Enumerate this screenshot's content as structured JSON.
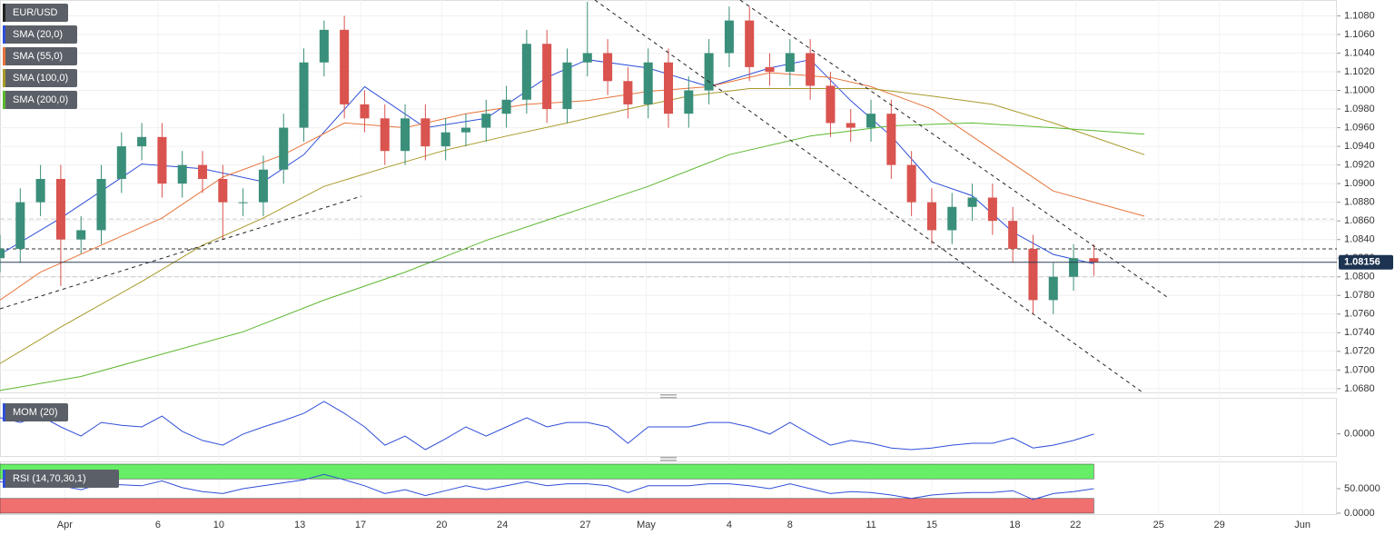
{
  "chart_data": [
    {
      "type": "candlestick",
      "series": [
        {
          "name": "EUR/USD",
          "up_color": "#3a8f7a",
          "down_color": "#d9534f"
        }
      ],
      "x": [
        0,
        1,
        2,
        3,
        4,
        5,
        6,
        7,
        8,
        9,
        10,
        11,
        12,
        13,
        14,
        15,
        16,
        17,
        18,
        19,
        20,
        21,
        22,
        23,
        24,
        25,
        26,
        27,
        28,
        29,
        30,
        31,
        32,
        33,
        34,
        35,
        36,
        37,
        38,
        39,
        40,
        41,
        42,
        43,
        44,
        45,
        46,
        47,
        48,
        49,
        50,
        51,
        52,
        53,
        54
      ],
      "open": [
        1.082,
        1.083,
        1.088,
        1.0905,
        1.084,
        1.085,
        1.0905,
        1.094,
        1.095,
        1.09,
        1.092,
        1.0905,
        1.088,
        1.088,
        1.0915,
        1.096,
        1.103,
        1.1065,
        1.0985,
        1.097,
        1.0935,
        1.097,
        1.094,
        1.0955,
        1.096,
        1.0975,
        1.099,
        1.105,
        1.098,
        1.103,
        1.104,
        1.101,
        1.0985,
        1.103,
        1.0975,
        1.1,
        1.104,
        1.1075,
        1.1025,
        1.102,
        1.104,
        1.1005,
        1.0965,
        1.096,
        1.0975,
        1.092,
        1.088,
        1.085,
        1.0875,
        1.0885,
        1.086,
        1.083,
        1.0775,
        1.08,
        1.082
      ],
      "high": [
        1.0845,
        1.0895,
        1.092,
        1.092,
        1.0865,
        1.092,
        1.0955,
        1.0965,
        1.0965,
        1.0935,
        1.0935,
        1.092,
        1.0895,
        1.093,
        1.0975,
        1.1045,
        1.1075,
        1.108,
        1.1,
        1.0985,
        1.0985,
        1.0985,
        1.097,
        1.0975,
        1.099,
        1.1005,
        1.1065,
        1.1065,
        1.1045,
        1.1095,
        1.1055,
        1.1025,
        1.1045,
        1.1045,
        1.1015,
        1.1055,
        1.109,
        1.109,
        1.104,
        1.1055,
        1.1055,
        1.102,
        1.098,
        1.099,
        1.099,
        1.0935,
        1.0895,
        1.089,
        1.09,
        1.09,
        1.0875,
        1.0845,
        1.0815,
        1.0835,
        1.0835
      ],
      "low": [
        1.0805,
        1.0815,
        1.0865,
        1.079,
        1.0825,
        1.0835,
        1.089,
        1.0925,
        1.0885,
        1.0885,
        1.089,
        1.084,
        1.0865,
        1.0865,
        1.09,
        1.0945,
        1.1015,
        1.097,
        1.0955,
        1.092,
        1.092,
        1.0925,
        1.0925,
        1.094,
        1.0945,
        1.096,
        1.0975,
        1.0965,
        1.0965,
        1.1015,
        1.0995,
        1.097,
        1.097,
        1.096,
        1.096,
        1.0985,
        1.1025,
        1.101,
        1.1005,
        1.1005,
        1.099,
        1.095,
        1.0945,
        1.0945,
        1.0905,
        1.0865,
        1.0835,
        1.0835,
        1.086,
        1.0845,
        1.0815,
        1.076,
        1.076,
        1.0785,
        1.0801
      ],
      "close": [
        1.083,
        1.088,
        1.0905,
        1.084,
        1.085,
        1.0905,
        1.094,
        1.095,
        1.09,
        1.092,
        1.0905,
        1.088,
        1.088,
        1.0915,
        1.096,
        1.103,
        1.1065,
        1.0985,
        1.097,
        1.0935,
        1.097,
        1.094,
        1.0955,
        1.096,
        1.0975,
        1.099,
        1.105,
        1.098,
        1.103,
        1.104,
        1.101,
        1.0985,
        1.103,
        1.0975,
        1.1,
        1.104,
        1.1075,
        1.1025,
        1.102,
        1.104,
        1.1005,
        1.0965,
        1.096,
        1.0975,
        1.092,
        1.088,
        1.085,
        1.0875,
        1.0885,
        1.086,
        1.083,
        1.0775,
        1.08,
        1.082,
        1.0816
      ],
      "lines": [
        {
          "name": "SMA (20,0)",
          "color": "#2f4fd8",
          "x": [
            0,
            3,
            7,
            10,
            13,
            15,
            18,
            21,
            24,
            27,
            29,
            32,
            35,
            38,
            40,
            42,
            44,
            46,
            48,
            50,
            52,
            54
          ],
          "values": [
            1.0824,
            1.0863,
            1.0921,
            1.0916,
            1.0902,
            1.0931,
            1.1004,
            1.096,
            1.097,
            1.1014,
            1.1033,
            1.1024,
            1.1004,
            1.1024,
            1.1033,
            1.0989,
            1.0951,
            1.0902,
            1.0887,
            1.0848,
            1.0824,
            1.0814
          ]
        },
        {
          "name": "SMA (55,0)",
          "color": "#e8743b",
          "x": [
            0,
            2,
            5,
            8,
            11,
            14,
            17,
            20,
            23,
            26,
            29,
            32,
            35,
            38,
            41,
            43,
            46,
            49,
            52,
            56.5
          ],
          "values": [
            1.0775,
            1.0805,
            1.0834,
            1.0863,
            1.0907,
            1.0931,
            1.0965,
            1.096,
            1.0975,
            1.0985,
            1.0989,
            1.0999,
            1.1004,
            1.1019,
            1.1014,
            1.1004,
            1.098,
            1.0936,
            1.0892,
            1.0865
          ]
        },
        {
          "name": "SMA (100,0)",
          "color": "#a89a2a",
          "x": [
            0,
            3,
            7,
            10,
            13,
            16,
            19,
            22,
            25,
            28,
            31,
            34,
            37,
            40,
            43,
            46,
            49,
            52,
            54.5,
            56.5
          ],
          "values": [
            1.0707,
            1.0746,
            1.0795,
            1.0834,
            1.0863,
            1.0897,
            1.0917,
            1.0936,
            1.0951,
            1.0965,
            1.098,
            1.0994,
            1.1002,
            1.1002,
            1.1002,
            1.0994,
            1.0985,
            1.0965,
            1.0946,
            1.0931
          ]
        },
        {
          "name": "SMA (200,0)",
          "color": "#5cb82e",
          "x": [
            0,
            4,
            8,
            12,
            16,
            20,
            24,
            28,
            32,
            36,
            40,
            44,
            48,
            52,
            56.5
          ],
          "values": [
            1.0678,
            1.0693,
            1.0717,
            1.0741,
            1.0775,
            1.0805,
            1.0839,
            1.0868,
            1.0897,
            1.0931,
            1.0951,
            1.0962,
            1.0965,
            1.096,
            1.0953
          ]
        }
      ],
      "hlines": [
        {
          "value": 1.083,
          "style": "dashed"
        },
        {
          "value": 1.08,
          "style": "dotted"
        },
        {
          "value": 1.0862,
          "style": "dotted"
        }
      ],
      "last_price": {
        "value": 1.08156,
        "label": "1.08156"
      },
      "xlim": [
        0,
        66
      ],
      "xticks": [
        {
          "value": 3.2,
          "label": "Apr"
        },
        {
          "value": 7.8,
          "label": "6"
        },
        {
          "value": 10.8,
          "label": "10"
        },
        {
          "value": 14.8,
          "label": "13"
        },
        {
          "value": 17.8,
          "label": "17"
        },
        {
          "value": 21.8,
          "label": "20"
        },
        {
          "value": 24.8,
          "label": "24"
        },
        {
          "value": 28.9,
          "label": "27"
        },
        {
          "value": 31.9,
          "label": "May"
        },
        {
          "value": 36,
          "label": "4"
        },
        {
          "value": 39,
          "label": "8"
        },
        {
          "value": 43,
          "label": "11"
        },
        {
          "value": 46,
          "label": "15"
        },
        {
          "value": 50.1,
          "label": "18"
        },
        {
          "value": 53.1,
          "label": "22"
        },
        {
          "value": 57.2,
          "label": "25"
        },
        {
          "value": 60.2,
          "label": "29"
        },
        {
          "value": 64.3,
          "label": "Jun"
        }
      ],
      "ylim": [
        1.0675,
        1.1097
      ],
      "yticks": [
        {
          "value": 1.068,
          "label": "1.0680"
        },
        {
          "value": 1.07,
          "label": "1.0700"
        },
        {
          "value": 1.072,
          "label": "1.0720"
        },
        {
          "value": 1.074,
          "label": "1.0740"
        },
        {
          "value": 1.076,
          "label": "1.0760"
        },
        {
          "value": 1.078,
          "label": "1.0780"
        },
        {
          "value": 1.08,
          "label": "1.0800"
        },
        {
          "value": 1.082,
          "label": "1.0820"
        },
        {
          "value": 1.084,
          "label": "1.0840"
        },
        {
          "value": 1.086,
          "label": "1.0860"
        },
        {
          "value": 1.088,
          "label": "1.0880"
        },
        {
          "value": 1.09,
          "label": "1.0900"
        },
        {
          "value": 1.092,
          "label": "1.0920"
        },
        {
          "value": 1.094,
          "label": "1.0940"
        },
        {
          "value": 1.096,
          "label": "1.0960"
        },
        {
          "value": 1.098,
          "label": "1.0980"
        },
        {
          "value": 1.1,
          "label": "1.1000"
        },
        {
          "value": 1.102,
          "label": "1.1020"
        },
        {
          "value": 1.104,
          "label": "1.1040"
        },
        {
          "value": 1.106,
          "label": "1.1060"
        },
        {
          "value": 1.108,
          "label": "1.1080"
        }
      ],
      "grid": true
    },
    {
      "type": "line",
      "title": "MOM (20)",
      "color": "#2f4fd8",
      "values": [
        0.0058,
        0.0041,
        0.0064,
        0.0025,
        -0.0008,
        0.0041,
        0.0031,
        0.0025,
        0.0064,
        0.0009,
        -0.0024,
        -0.0041,
        -0.0001,
        0.0025,
        0.0048,
        0.0074,
        0.0117,
        0.0074,
        0.0025,
        -0.0041,
        -0.0008,
        -0.0057,
        -0.0018,
        0.0025,
        -0.0008,
        0.0025,
        0.0058,
        0.0025,
        0.0041,
        0.0041,
        0.0025,
        -0.0034,
        0.0025,
        0.0025,
        0.0025,
        0.0041,
        0.0041,
        0.0025,
        -0.0001,
        0.0041,
        -0.0001,
        -0.0041,
        -0.0024,
        -0.0034,
        -0.0051,
        -0.0057,
        -0.0051,
        -0.0041,
        -0.0034,
        -0.0034,
        -0.0015,
        -0.0051,
        -0.0041,
        -0.0024,
        -0.0001
      ],
      "ylim": [
        -0.008,
        0.013
      ],
      "yticks": [
        {
          "value": 0,
          "label": "0.0000"
        }
      ]
    },
    {
      "type": "line",
      "title": "RSI (14,70,30,1)",
      "color": "#2f4fd8",
      "values": [
        64,
        60,
        66,
        56,
        48,
        60,
        58,
        56,
        66,
        52,
        44,
        40,
        50,
        56,
        62,
        68,
        79,
        68,
        56,
        40,
        48,
        36,
        46,
        56,
        48,
        56,
        64,
        56,
        60,
        60,
        56,
        42,
        56,
        56,
        56,
        60,
        60,
        56,
        50,
        60,
        50,
        40,
        44,
        42,
        37,
        30,
        37,
        40,
        42,
        42,
        46,
        28,
        40,
        44,
        50
      ],
      "overbought": 70,
      "oversold": 30,
      "overbought_color": "#66ee66",
      "oversold_color": "#f07070",
      "ylim": [
        0,
        100
      ],
      "yticks": [
        {
          "value": 50,
          "label": "50.0000"
        },
        {
          "value": 0,
          "label": "0.0000"
        }
      ]
    }
  ]
}
